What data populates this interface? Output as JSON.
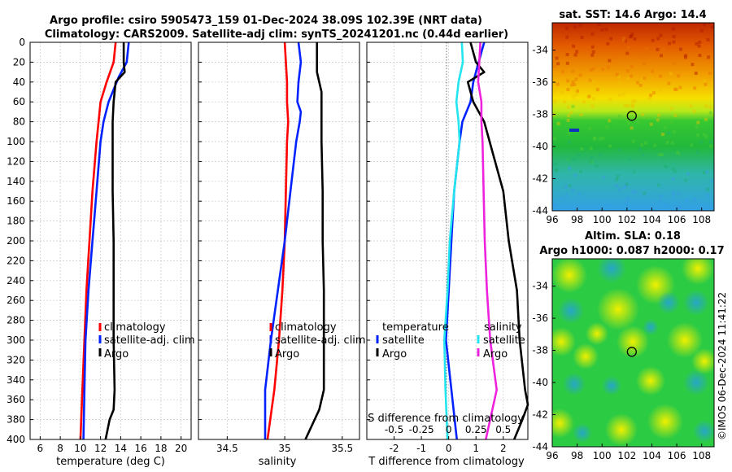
{
  "titles": {
    "line1": "Argo profile: csiro 5905473_159 01-Dec-2024 38.09S 102.39E (NRT data)",
    "line2": "Climatology: CARS2009. Satellite-adj clim: synTS_20241201.nc (0.44d earlier)",
    "sst": "sat. SST: 14.6 Argo: 14.4",
    "altim1": "Altim. SLA: 0.18",
    "altim2": "Argo h1000: 0.087 h2000: 0.17",
    "credit": "©IMOS 06-Dec-2024 11:41:22"
  },
  "colors": {
    "climatology": "#ff0000",
    "satellite": "#0022ff",
    "argo": "#000000",
    "sat_salinity": "#22e5f0",
    "argo_salinity": "#ee22dd",
    "axis": "#000000"
  },
  "chart_data": [
    {
      "type": "line",
      "id": "temperature",
      "xlabel": "temperature (deg C)",
      "ylabel": "",
      "xlim": [
        5,
        21
      ],
      "ylim": [
        400,
        0
      ],
      "xticks": [
        "6",
        "8",
        "10",
        "12",
        "14",
        "16",
        "18",
        "20"
      ],
      "xtick_values": [
        6,
        8,
        10,
        12,
        14,
        16,
        18,
        20
      ],
      "yticks": [
        "0",
        "20",
        "40",
        "60",
        "80",
        "100",
        "120",
        "140",
        "160",
        "180",
        "200",
        "220",
        "240",
        "260",
        "280",
        "300",
        "320",
        "340",
        "360",
        "380",
        "400"
      ],
      "ytick_values": [
        0,
        20,
        40,
        60,
        80,
        100,
        120,
        140,
        160,
        180,
        200,
        220,
        240,
        260,
        280,
        300,
        320,
        340,
        360,
        380,
        400
      ],
      "legend": [
        "climatology",
        "satellite-adj. clim",
        "Argo"
      ],
      "series": [
        {
          "name": "climatology",
          "depth": [
            0,
            20,
            40,
            60,
            80,
            100,
            150,
            200,
            250,
            300,
            350,
            400
          ],
          "values": [
            13.5,
            13.3,
            12.6,
            12.0,
            11.8,
            11.6,
            11.2,
            10.9,
            10.6,
            10.4,
            10.2,
            10.0
          ]
        },
        {
          "name": "satellite-adj. clim",
          "depth": [
            0,
            20,
            35,
            60,
            80,
            100,
            150,
            200,
            250,
            300,
            350,
            400
          ],
          "values": [
            14.8,
            14.6,
            13.8,
            12.8,
            12.3,
            12.0,
            11.6,
            11.2,
            10.8,
            10.5,
            10.4,
            10.3
          ]
        },
        {
          "name": "Argo",
          "depth": [
            0,
            20,
            30,
            40,
            60,
            80,
            100,
            150,
            200,
            250,
            300,
            350,
            370,
            380,
            400
          ],
          "values": [
            14.3,
            14.3,
            14.4,
            13.5,
            13.3,
            13.2,
            13.2,
            13.2,
            13.3,
            13.3,
            13.3,
            13.4,
            13.3,
            12.9,
            12.5
          ]
        }
      ]
    },
    {
      "type": "line",
      "id": "salinity",
      "xlabel": "salinity",
      "ylabel": "",
      "xlim": [
        34.25,
        35.65
      ],
      "ylim": [
        400,
        0
      ],
      "xticks": [
        "34.5",
        "35",
        "35.5"
      ],
      "xtick_values": [
        34.5,
        35,
        35.5
      ],
      "legend": [
        "climatology",
        "satellite-adj. clim",
        "Argo"
      ],
      "series": [
        {
          "name": "climatology",
          "depth": [
            0,
            20,
            40,
            60,
            80,
            100,
            150,
            200,
            250,
            300,
            350,
            400
          ],
          "values": [
            35.0,
            35.01,
            35.02,
            35.02,
            35.03,
            35.02,
            35.01,
            35.0,
            34.98,
            34.95,
            34.91,
            34.85
          ]
        },
        {
          "name": "satellite-adj. clim",
          "depth": [
            0,
            20,
            40,
            60,
            70,
            80,
            100,
            150,
            200,
            250,
            300,
            350,
            400
          ],
          "values": [
            35.12,
            35.14,
            35.12,
            35.11,
            35.14,
            35.13,
            35.1,
            35.05,
            35.0,
            34.94,
            34.88,
            34.83,
            34.83
          ]
        },
        {
          "name": "Argo",
          "depth": [
            0,
            20,
            30,
            40,
            50,
            60,
            80,
            100,
            150,
            200,
            250,
            300,
            350,
            370,
            400
          ],
          "values": [
            35.28,
            35.28,
            35.28,
            35.3,
            35.32,
            35.32,
            35.32,
            35.32,
            35.33,
            35.33,
            35.34,
            35.34,
            35.34,
            35.3,
            35.18
          ]
        }
      ]
    },
    {
      "type": "line",
      "id": "difference",
      "xlabel": "T difference from climatology",
      "xlabel2": "S difference from climatology",
      "xlim": [
        -3,
        2.9
      ],
      "ylim": [
        400,
        0
      ],
      "xticks": [
        "-2",
        "-1",
        "0",
        "1",
        "2"
      ],
      "xtick_values": [
        -2,
        -1,
        0,
        1,
        2
      ],
      "x2ticks": [
        "-0.5",
        "-0.25",
        "0",
        "0.25",
        "0.5"
      ],
      "x2tick_values": [
        -0.5,
        -0.25,
        0,
        0.25,
        0.5
      ],
      "x2_scale": 0.25,
      "legend_temperature_title": "temperature",
      "legend_salinity_title": "salinity",
      "legend": [
        "satellite",
        "Argo"
      ],
      "series": [
        {
          "name": "temperature satellite",
          "depth": [
            0,
            10,
            30,
            40,
            60,
            80,
            100,
            150,
            200,
            250,
            300,
            350,
            400
          ],
          "values": [
            1.3,
            1.2,
            1.0,
            0.9,
            0.8,
            0.5,
            0.4,
            0.2,
            0.1,
            0.0,
            -0.1,
            0.1,
            0.3
          ]
        },
        {
          "name": "temperature Argo",
          "depth": [
            0,
            20,
            30,
            40,
            60,
            80,
            100,
            150,
            200,
            250,
            300,
            350,
            365,
            380,
            400
          ],
          "values": [
            0.8,
            1.0,
            1.3,
            0.7,
            0.9,
            1.3,
            1.5,
            2.0,
            2.2,
            2.5,
            2.6,
            2.8,
            2.9,
            2.7,
            2.4
          ]
        },
        {
          "name": "salinity satellite",
          "depth": [
            0,
            20,
            40,
            60,
            80,
            100,
            150,
            200,
            250,
            300,
            350,
            400
          ],
          "values": [
            0.12,
            0.13,
            0.09,
            0.07,
            0.09,
            0.1,
            0.05,
            0.01,
            -0.01,
            -0.04,
            -0.03,
            -0.01
          ]
        },
        {
          "name": "salinity Argo",
          "depth": [
            0,
            20,
            40,
            60,
            80,
            100,
            150,
            200,
            250,
            300,
            350,
            400
          ],
          "values": [
            0.29,
            0.28,
            0.27,
            0.3,
            0.3,
            0.31,
            0.32,
            0.33,
            0.35,
            0.38,
            0.44,
            0.34
          ]
        }
      ]
    },
    {
      "type": "heatmap",
      "id": "sst_map",
      "title": "sat. SST: 14.6 Argo: 14.4",
      "xlim": [
        96,
        109
      ],
      "ylim": [
        -44,
        -32.3
      ],
      "xticks": [
        "96",
        "98",
        "100",
        "102",
        "104",
        "106",
        "108"
      ],
      "xtick_values": [
        96,
        98,
        100,
        102,
        104,
        106,
        108
      ],
      "yticks": [
        "-34",
        "-36",
        "-38",
        "-40",
        "-42",
        "-44"
      ],
      "ytick_values": [
        -34,
        -36,
        -38,
        -40,
        -42,
        -44
      ],
      "marker": {
        "lon": 102.39,
        "lat": -38.09
      }
    },
    {
      "type": "heatmap",
      "id": "sla_map",
      "title": "Altim. SLA: 0.18",
      "xlim": [
        96,
        109
      ],
      "ylim": [
        -44,
        -32.3
      ],
      "xticks": [
        "96",
        "98",
        "100",
        "102",
        "104",
        "106",
        "108"
      ],
      "xtick_values": [
        96,
        98,
        100,
        102,
        104,
        106,
        108
      ],
      "yticks": [
        "-34",
        "-36",
        "-38",
        "-40",
        "-42",
        "-44"
      ],
      "ytick_values": [
        -34,
        -36,
        -38,
        -40,
        -42,
        -44
      ],
      "marker": {
        "lon": 102.39,
        "lat": -38.09
      }
    }
  ]
}
